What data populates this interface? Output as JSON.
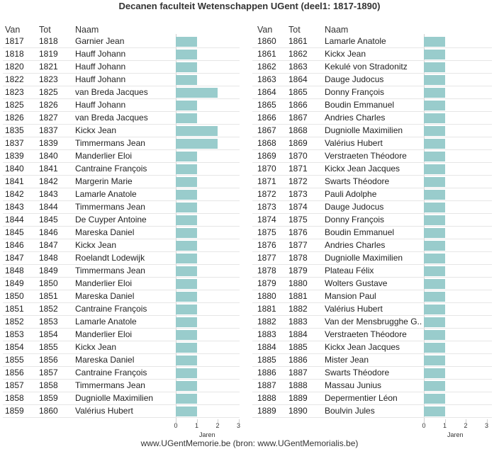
{
  "title": "Decanen faculteit Wetenschappen UGent (deel1: 1817-1890)",
  "footer": "www.UGentMemorie.be (bron: www.UGentMemorialis.be)",
  "chart_data": {
    "type": "table",
    "columns": [
      "Van",
      "Tot",
      "Naam"
    ],
    "xlabel": "Jaren",
    "xticks": [
      0,
      1,
      2,
      3
    ],
    "xlim": [
      0,
      3
    ],
    "bar_color": "#99cccc",
    "panels": [
      {
        "rows": [
          {
            "van": "1817",
            "tot": "1818",
            "naam": "Garnier Jean",
            "jaren": 1
          },
          {
            "van": "1818",
            "tot": "1819",
            "naam": "Hauff Johann",
            "jaren": 1
          },
          {
            "van": "1820",
            "tot": "1821",
            "naam": "Hauff Johann",
            "jaren": 1
          },
          {
            "van": "1822",
            "tot": "1823",
            "naam": "Hauff Johann",
            "jaren": 1
          },
          {
            "van": "1823",
            "tot": "1825",
            "naam": "van Breda Jacques",
            "jaren": 2
          },
          {
            "van": "1825",
            "tot": "1826",
            "naam": "Hauff Johann",
            "jaren": 1
          },
          {
            "van": "1826",
            "tot": "1827",
            "naam": "van Breda Jacques",
            "jaren": 1
          },
          {
            "van": "1835",
            "tot": "1837",
            "naam": "Kickx Jean",
            "jaren": 2
          },
          {
            "van": "1837",
            "tot": "1839",
            "naam": "Timmermans Jean",
            "jaren": 2
          },
          {
            "van": "1839",
            "tot": "1840",
            "naam": "Manderlier Eloi",
            "jaren": 1
          },
          {
            "van": "1840",
            "tot": "1841",
            "naam": "Cantraine François",
            "jaren": 1
          },
          {
            "van": "1841",
            "tot": "1842",
            "naam": "Margerin Marie",
            "jaren": 1
          },
          {
            "van": "1842",
            "tot": "1843",
            "naam": "Lamarle Anatole",
            "jaren": 1
          },
          {
            "van": "1843",
            "tot": "1844",
            "naam": "Timmermans Jean",
            "jaren": 1
          },
          {
            "van": "1844",
            "tot": "1845",
            "naam": "De Cuyper Antoine",
            "jaren": 1
          },
          {
            "van": "1845",
            "tot": "1846",
            "naam": "Mareska Daniel",
            "jaren": 1
          },
          {
            "van": "1846",
            "tot": "1847",
            "naam": "Kickx Jean",
            "jaren": 1
          },
          {
            "van": "1847",
            "tot": "1848",
            "naam": "Roelandt Lodewijk",
            "jaren": 1
          },
          {
            "van": "1848",
            "tot": "1849",
            "naam": "Timmermans Jean",
            "jaren": 1
          },
          {
            "van": "1849",
            "tot": "1850",
            "naam": "Manderlier Eloi",
            "jaren": 1
          },
          {
            "van": "1850",
            "tot": "1851",
            "naam": "Mareska Daniel",
            "jaren": 1
          },
          {
            "van": "1851",
            "tot": "1852",
            "naam": "Cantraine François",
            "jaren": 1
          },
          {
            "van": "1852",
            "tot": "1853",
            "naam": "Lamarle Anatole",
            "jaren": 1
          },
          {
            "van": "1853",
            "tot": "1854",
            "naam": "Manderlier Eloi",
            "jaren": 1
          },
          {
            "van": "1854",
            "tot": "1855",
            "naam": "Kickx Jean",
            "jaren": 1
          },
          {
            "van": "1855",
            "tot": "1856",
            "naam": "Mareska Daniel",
            "jaren": 1
          },
          {
            "van": "1856",
            "tot": "1857",
            "naam": "Cantraine François",
            "jaren": 1
          },
          {
            "van": "1857",
            "tot": "1858",
            "naam": "Timmermans Jean",
            "jaren": 1
          },
          {
            "van": "1858",
            "tot": "1859",
            "naam": "Dugniolle Maximilien",
            "jaren": 1
          },
          {
            "van": "1859",
            "tot": "1860",
            "naam": "Valérius Hubert",
            "jaren": 1
          }
        ]
      },
      {
        "rows": [
          {
            "van": "1860",
            "tot": "1861",
            "naam": "Lamarle Anatole",
            "jaren": 1
          },
          {
            "van": "1861",
            "tot": "1862",
            "naam": "Kickx Jean",
            "jaren": 1
          },
          {
            "van": "1862",
            "tot": "1863",
            "naam": "Kekulé von Stradonitz",
            "jaren": 1
          },
          {
            "van": "1863",
            "tot": "1864",
            "naam": "Dauge Judocus",
            "jaren": 1
          },
          {
            "van": "1864",
            "tot": "1865",
            "naam": "Donny François",
            "jaren": 1
          },
          {
            "van": "1865",
            "tot": "1866",
            "naam": "Boudin Emmanuel",
            "jaren": 1
          },
          {
            "van": "1866",
            "tot": "1867",
            "naam": "Andries Charles",
            "jaren": 1
          },
          {
            "van": "1867",
            "tot": "1868",
            "naam": "Dugniolle Maximilien",
            "jaren": 1
          },
          {
            "van": "1868",
            "tot": "1869",
            "naam": "Valérius Hubert",
            "jaren": 1
          },
          {
            "van": "1869",
            "tot": "1870",
            "naam": "Verstraeten Théodore",
            "jaren": 1
          },
          {
            "van": "1870",
            "tot": "1871",
            "naam": "Kickx Jean Jacques",
            "jaren": 1
          },
          {
            "van": "1871",
            "tot": "1872",
            "naam": "Swarts Théodore",
            "jaren": 1
          },
          {
            "van": "1872",
            "tot": "1873",
            "naam": "Pauli Adolphe",
            "jaren": 1
          },
          {
            "van": "1873",
            "tot": "1874",
            "naam": "Dauge Judocus",
            "jaren": 1
          },
          {
            "van": "1874",
            "tot": "1875",
            "naam": "Donny François",
            "jaren": 1
          },
          {
            "van": "1875",
            "tot": "1876",
            "naam": "Boudin Emmanuel",
            "jaren": 1
          },
          {
            "van": "1876",
            "tot": "1877",
            "naam": "Andries Charles",
            "jaren": 1
          },
          {
            "van": "1877",
            "tot": "1878",
            "naam": "Dugniolle Maximilien",
            "jaren": 1
          },
          {
            "van": "1878",
            "tot": "1879",
            "naam": "Plateau Félix",
            "jaren": 1
          },
          {
            "van": "1879",
            "tot": "1880",
            "naam": "Wolters Gustave",
            "jaren": 1
          },
          {
            "van": "1880",
            "tot": "1881",
            "naam": "Mansion Paul",
            "jaren": 1
          },
          {
            "van": "1881",
            "tot": "1882",
            "naam": "Valérius Hubert",
            "jaren": 1
          },
          {
            "van": "1882",
            "tot": "1883",
            "naam": "Van der Mensbrugghe G..",
            "jaren": 1
          },
          {
            "van": "1883",
            "tot": "1884",
            "naam": "Verstraeten Théodore",
            "jaren": 1
          },
          {
            "van": "1884",
            "tot": "1885",
            "naam": "Kickx Jean Jacques",
            "jaren": 1
          },
          {
            "van": "1885",
            "tot": "1886",
            "naam": "Mister Jean",
            "jaren": 1
          },
          {
            "van": "1886",
            "tot": "1887",
            "naam": "Swarts Théodore",
            "jaren": 1
          },
          {
            "van": "1887",
            "tot": "1888",
            "naam": "Massau Junius",
            "jaren": 1
          },
          {
            "van": "1888",
            "tot": "1889",
            "naam": "Depermentier Léon",
            "jaren": 1
          },
          {
            "van": "1889",
            "tot": "1890",
            "naam": "Boulvin Jules",
            "jaren": 1
          }
        ]
      }
    ]
  }
}
